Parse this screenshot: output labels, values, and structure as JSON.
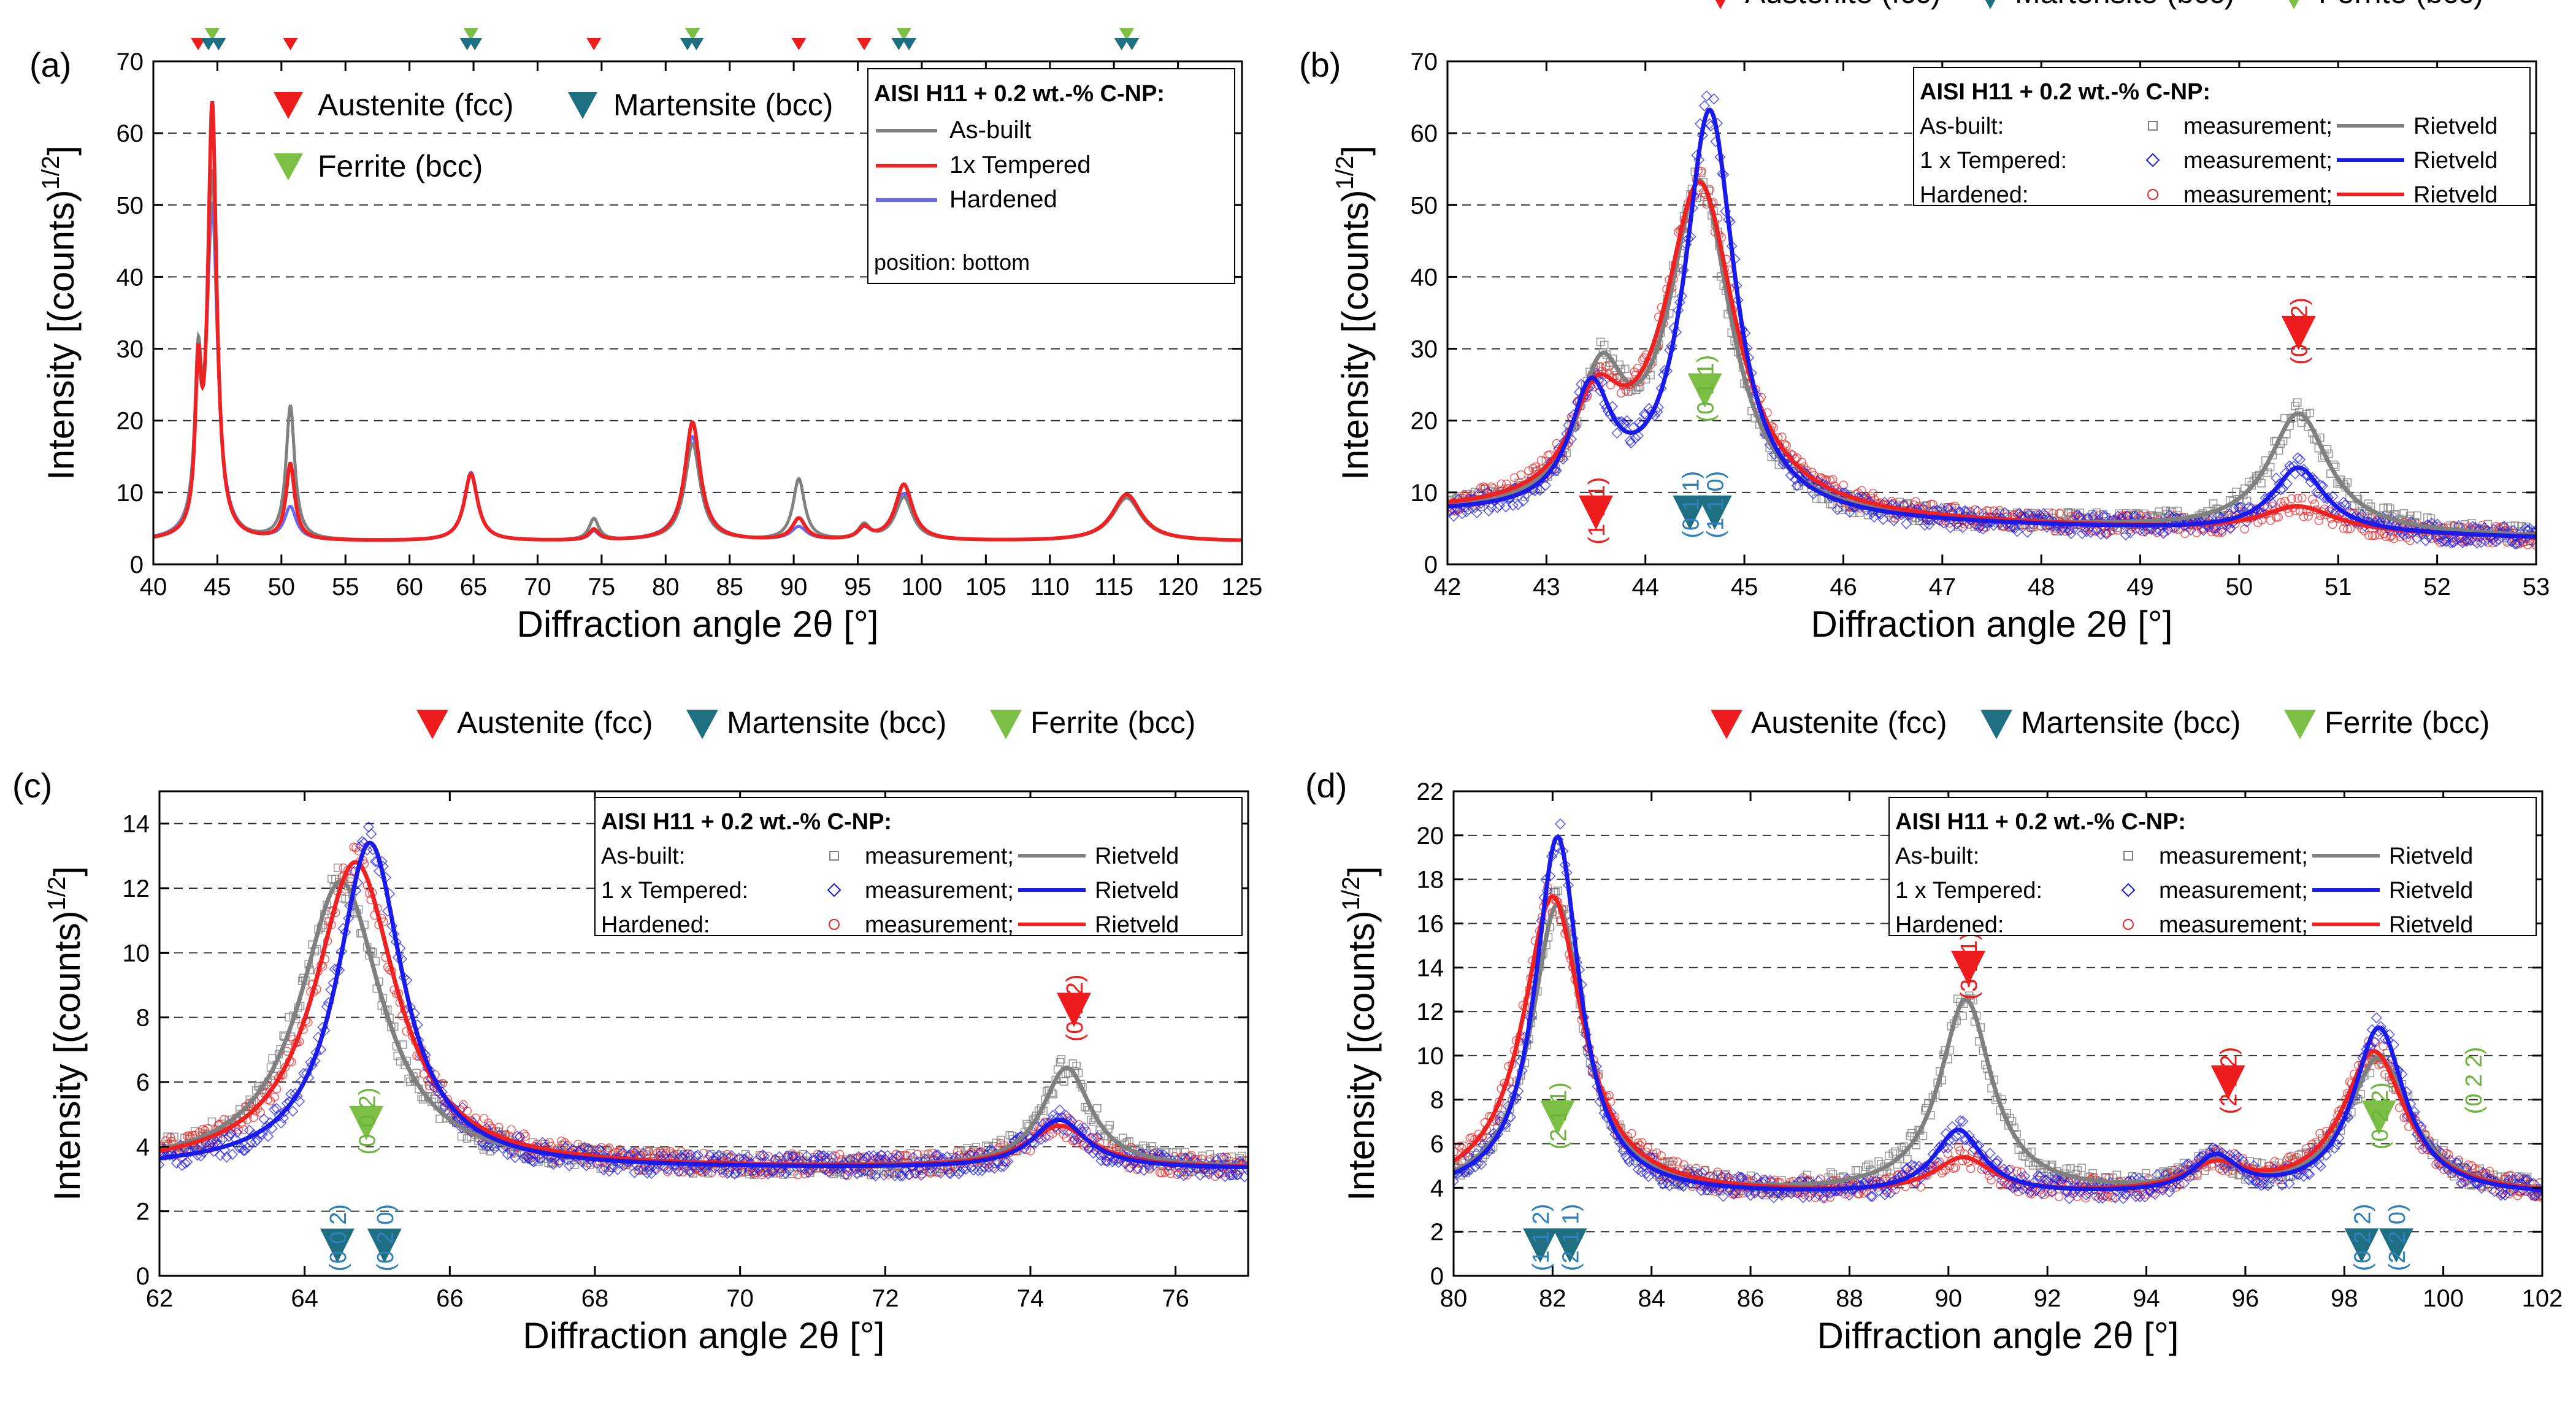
{
  "colors": {
    "austenite": "#ee1c1c",
    "martensite": "#1f6f82",
    "ferrite": "#7cbf45",
    "asbuilt": "#808080",
    "tempered": "#1a1aeb",
    "hardened": "#ee2222",
    "hardened_a": "#ee2222",
    "tempered_a": "#6a6af0",
    "grid": "#333333"
  },
  "phase_labels": {
    "austenite": "Austenite (fcc)",
    "martensite": "Martensite (bcc)",
    "ferrite": "Ferrite (bcc)"
  },
  "legend": {
    "title": "AISI H11 + 0.2 wt.-% C-NP:",
    "asbuilt": "As-built:",
    "tempered": "1 x Tempered:",
    "hardened": "Hardened:",
    "measurement": "measurement;",
    "rietveld": "Rietveld"
  },
  "legend_a": {
    "title": "AISI H11 + 0.2 wt.-% C-NP:",
    "asbuilt": "As-built",
    "tempered": "1x Tempered",
    "hardened": "Hardened",
    "note": "position: bottom"
  },
  "chart_data": [
    {
      "id": "a",
      "panel_label": "(a)",
      "type": "line",
      "xlabel": "Diffraction angle 2θ [°]",
      "ylabel": "Intensity [(counts)",
      "ylabel_sup": "1/2",
      "ylabel_end": "]",
      "xlim": [
        40,
        125
      ],
      "ylim": [
        0,
        70
      ],
      "xticks": [
        40,
        45,
        50,
        55,
        60,
        65,
        70,
        75,
        80,
        85,
        90,
        95,
        100,
        105,
        110,
        115,
        120,
        125
      ],
      "yticks": [
        0,
        10,
        20,
        30,
        40,
        50,
        60,
        70
      ],
      "grid_y": [
        10,
        20,
        30,
        40,
        50,
        60
      ],
      "baseline": 3.2,
      "series": [
        {
          "name": "As-built",
          "peaks": [
            [
              43.5,
              21,
              0.35
            ],
            [
              44.6,
              50,
              0.5
            ],
            [
              50.7,
              18.5,
              0.45
            ],
            [
              64.8,
              9.3,
              0.7
            ],
            [
              74.4,
              3,
              0.5
            ],
            [
              82.1,
              13.5,
              0.8
            ],
            [
              90.4,
              8.5,
              0.6
            ],
            [
              95.5,
              2,
              0.6
            ],
            [
              98.6,
              6,
              0.9
            ],
            [
              116,
              6,
              1.5
            ]
          ]
        },
        {
          "name": "1x Tempered",
          "peaks": [
            [
              43.5,
              20,
              0.3
            ],
            [
              44.6,
              60,
              0.45
            ],
            [
              50.7,
              10.5,
              0.45
            ],
            [
              64.8,
              9.3,
              0.7
            ],
            [
              74.4,
              1.5,
              0.5
            ],
            [
              82.1,
              16.5,
              0.8
            ],
            [
              90.4,
              3,
              0.7
            ],
            [
              95.5,
              1.6,
              0.6
            ],
            [
              98.6,
              7.8,
              0.9
            ],
            [
              116,
              6.5,
              1.5
            ]
          ]
        },
        {
          "name": "Hardened",
          "peaks": [
            [
              43.5,
              17,
              0.4
            ],
            [
              44.6,
              45,
              0.55
            ],
            [
              50.7,
              4.5,
              0.6
            ],
            [
              64.8,
              9.5,
              0.7
            ],
            [
              74.4,
              1.2,
              0.5
            ],
            [
              82.1,
              14.5,
              0.9
            ],
            [
              90.4,
              1.8,
              0.8
            ],
            [
              95.5,
              1.4,
              0.7
            ],
            [
              98.6,
              6.5,
              1.0
            ],
            [
              116,
              6,
              1.6
            ]
          ]
        }
      ],
      "markers_top": [
        {
          "x": 43.5,
          "phase": "austenite"
        },
        {
          "x": 44.6,
          "phase": "ferrite"
        },
        {
          "x": 50.7,
          "phase": "austenite"
        },
        {
          "x": 64.8,
          "phase": "ferrite"
        },
        {
          "x": 74.4,
          "phase": "austenite"
        },
        {
          "x": 82.1,
          "phase": "ferrite"
        },
        {
          "x": 90.4,
          "phase": "austenite"
        },
        {
          "x": 95.5,
          "phase": "austenite"
        },
        {
          "x": 98.6,
          "phase": "ferrite"
        },
        {
          "x": 116,
          "phase": "ferrite"
        }
      ],
      "markers_top2": [
        {
          "x": 44.3,
          "phase": "martensite"
        },
        {
          "x": 45.1,
          "phase": "martensite"
        },
        {
          "x": 64.5,
          "phase": "martensite"
        },
        {
          "x": 65.1,
          "phase": "martensite"
        },
        {
          "x": 81.7,
          "phase": "martensite"
        },
        {
          "x": 82.4,
          "phase": "martensite"
        },
        {
          "x": 98.2,
          "phase": "martensite"
        },
        {
          "x": 99.0,
          "phase": "martensite"
        },
        {
          "x": 115.6,
          "phase": "martensite"
        },
        {
          "x": 116.4,
          "phase": "martensite"
        }
      ]
    },
    {
      "id": "b",
      "panel_label": "(b)",
      "type": "scatter+line",
      "xlabel": "Diffraction angle 2θ [°]",
      "ylabel": "Intensity [(counts)",
      "ylabel_sup": "1/2",
      "ylabel_end": "]",
      "xlim": [
        42,
        53
      ],
      "ylim": [
        0,
        70
      ],
      "xticks": [
        42,
        43,
        44,
        45,
        46,
        47,
        48,
        49,
        50,
        51,
        52,
        53
      ],
      "yticks": [
        0,
        10,
        20,
        30,
        40,
        50,
        60,
        70
      ],
      "grid_y": [
        10,
        20,
        30,
        40,
        50,
        60
      ],
      "baseline": 3.8,
      "slope": [
        42,
        6.8,
        53,
        3.6
      ],
      "series": [
        {
          "name": "As-built",
          "peaks": [
            [
              43.55,
              17,
              0.32
            ],
            [
              44.55,
              46,
              0.42
            ],
            [
              50.6,
              16.5,
              0.4
            ]
          ]
        },
        {
          "name": "1 x Tempered",
          "peaks": [
            [
              43.45,
              16,
              0.28
            ],
            [
              44.65,
              56.5,
              0.34
            ],
            [
              50.6,
              9,
              0.35
            ]
          ]
        },
        {
          "name": "Hardened",
          "peaks": [
            [
              43.5,
              13,
              0.35
            ],
            [
              44.55,
              46,
              0.48
            ],
            [
              50.6,
              3.5,
              0.5
            ]
          ]
        }
      ],
      "markers": [
        {
          "x": 43.5,
          "y": 4.8,
          "phase": "austenite",
          "hkl": "(1 1 1)"
        },
        {
          "x": 44.45,
          "y": 4.8,
          "phase": "martensite",
          "hkl": "(0 1 1)"
        },
        {
          "x": 44.7,
          "y": 4.8,
          "phase": "martensite",
          "hkl": "(1 1 0)"
        },
        {
          "x": 44.6,
          "y": 21.8,
          "phase": "ferrite",
          "hkl": "(0 1 1)"
        },
        {
          "x": 50.6,
          "y": 29.8,
          "phase": "austenite",
          "hkl": "(0 0 2)"
        }
      ]
    },
    {
      "id": "c",
      "panel_label": "(c)",
      "type": "scatter+line",
      "xlabel": "Diffraction angle 2θ [°]",
      "ylabel": "Intensity [(counts)",
      "ylabel_sup": "1/2",
      "ylabel_end": "]",
      "xlim": [
        62,
        77
      ],
      "ylim": [
        0,
        15
      ],
      "xticks": [
        62,
        64,
        66,
        68,
        70,
        72,
        74,
        76
      ],
      "yticks": [
        0,
        2,
        4,
        6,
        8,
        10,
        12,
        14
      ],
      "grid_y": [
        2,
        4,
        6,
        8,
        10,
        12,
        14
      ],
      "baseline": 3.3,
      "slope": null,
      "series": [
        {
          "name": "As-built",
          "peaks": [
            [
              64.5,
              8.9,
              0.75
            ],
            [
              74.5,
              3.1,
              0.45
            ]
          ]
        },
        {
          "name": "1 x Tempered",
          "peaks": [
            [
              64.9,
              10.1,
              0.6
            ],
            [
              74.4,
              1.5,
              0.5
            ]
          ]
        },
        {
          "name": "Hardened",
          "peaks": [
            [
              64.7,
              9.5,
              0.75
            ],
            [
              74.4,
              1.3,
              0.6
            ]
          ]
        }
      ],
      "markers": [
        {
          "x": 64.45,
          "y": 0.4,
          "phase": "martensite",
          "hkl": "(0 0 2)"
        },
        {
          "x": 65.1,
          "y": 0.4,
          "phase": "martensite",
          "hkl": "(0 2 0)"
        },
        {
          "x": 64.85,
          "y": 4.2,
          "phase": "ferrite",
          "hkl": "(0 0 2)"
        },
        {
          "x": 74.6,
          "y": 7.7,
          "phase": "austenite",
          "hkl": "(0 2 2)"
        }
      ]
    },
    {
      "id": "d",
      "panel_label": "(d)",
      "type": "scatter+line",
      "xlabel": "Diffraction angle 2θ [°]",
      "ylabel": "Intensity [(counts)",
      "ylabel_sup": "1/2",
      "ylabel_end": "]",
      "xlim": [
        80,
        102
      ],
      "ylim": [
        0,
        22
      ],
      "xticks": [
        80,
        82,
        84,
        86,
        88,
        90,
        92,
        94,
        96,
        98,
        100,
        102
      ],
      "yticks": [
        0,
        2,
        4,
        6,
        8,
        10,
        12,
        14,
        16,
        18,
        20,
        22
      ],
      "grid_y": [
        2,
        4,
        6,
        8,
        10,
        12,
        14,
        16,
        18,
        20
      ],
      "baseline": 3.6,
      "slope": null,
      "series": [
        {
          "name": "As-built",
          "peaks": [
            [
              82.1,
              13.2,
              0.7
            ],
            [
              90.35,
              8.8,
              0.7
            ],
            [
              95.4,
              1.2,
              0.7
            ],
            [
              98.7,
              6.2,
              0.85
            ]
          ]
        },
        {
          "name": "1 x Tempered",
          "peaks": [
            [
              82.1,
              16.3,
              0.6
            ],
            [
              90.2,
              2.9,
              0.65
            ],
            [
              95.4,
              1.6,
              0.6
            ],
            [
              98.7,
              7.6,
              0.7
            ]
          ]
        },
        {
          "name": "Hardened",
          "peaks": [
            [
              82.0,
              13.6,
              0.8
            ],
            [
              90.3,
              1.6,
              0.8
            ],
            [
              95.4,
              1.2,
              0.8
            ],
            [
              98.6,
              6.5,
              0.85
            ]
          ]
        }
      ],
      "markers": [
        {
          "x": 81.75,
          "y": 0.6,
          "phase": "martensite",
          "hkl": "(1 1 2)"
        },
        {
          "x": 82.35,
          "y": 0.6,
          "phase": "martensite",
          "hkl": "(2 1 1)"
        },
        {
          "x": 82.1,
          "y": 6.4,
          "phase": "ferrite",
          "hkl": "(2 1 1)"
        },
        {
          "x": 90.4,
          "y": 13.2,
          "phase": "austenite",
          "hkl": "(3 1 1)"
        },
        {
          "x": 95.65,
          "y": 8.0,
          "phase": "austenite",
          "hkl": "(2 2 2)"
        },
        {
          "x": 98.35,
          "y": 0.6,
          "phase": "martensite",
          "hkl": "(0 2 2)"
        },
        {
          "x": 99.05,
          "y": 0.6,
          "phase": "martensite",
          "hkl": "(2 2 0)"
        },
        {
          "x": 98.7,
          "y": 6.4,
          "phase": "ferrite",
          "hkl": "(0 2 2)"
        }
      ],
      "extra_hkl": [
        {
          "x": 100.6,
          "y": 10.4,
          "phase": "ferrite",
          "hkl": "(0 2 2)"
        }
      ]
    }
  ]
}
